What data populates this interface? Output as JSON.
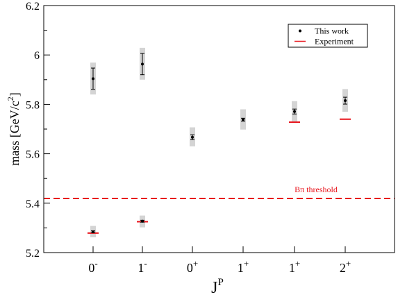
{
  "chart_data": {
    "type": "scatter",
    "xlabel": "J",
    "xlabel_sup": "P",
    "ylabel": "mass  [GeV/c",
    "ylabel_sup": "2",
    "ylabel_end": "]",
    "ylim": [
      5.2,
      6.2
    ],
    "yticks": [
      "5.2",
      "5.4",
      "5.6",
      "5.8",
      "6",
      "6.2"
    ],
    "categories": [
      {
        "base": "0",
        "sup": "-"
      },
      {
        "base": "1",
        "sup": "-"
      },
      {
        "base": "0",
        "sup": "+"
      },
      {
        "base": "1",
        "sup": "+"
      },
      {
        "base": "1",
        "sup": "+"
      },
      {
        "base": "2",
        "sup": "+"
      }
    ],
    "legend": {
      "placement": "top-right",
      "entries": [
        "This work",
        "Experiment"
      ]
    },
    "threshold": {
      "label": "Bπ threshold",
      "value": 5.419,
      "color": "#e8131b"
    },
    "series": [
      {
        "name": "This work",
        "color": "#000000",
        "values": [
          5.904,
          5.963,
          5.667,
          5.738,
          5.771,
          5.815
        ],
        "errors": [
          0.043,
          0.043,
          0.01,
          0.006,
          0.01,
          0.014
        ],
        "band_low": [
          5.84,
          5.9,
          5.63,
          5.698,
          5.729,
          5.77
        ],
        "band_high": [
          5.969,
          6.029,
          5.707,
          5.78,
          5.813,
          5.862
        ]
      },
      {
        "name": "Experiment",
        "color": "#e8131b",
        "values": [
          5.279,
          5.325,
          null,
          null,
          5.728,
          5.74
        ]
      }
    ],
    "low_states": {
      "values": [
        5.284,
        5.327
      ],
      "errors": [
        0.004,
        0.004
      ],
      "band_low": [
        5.262,
        5.302
      ],
      "band_high": [
        5.308,
        5.35
      ]
    }
  }
}
